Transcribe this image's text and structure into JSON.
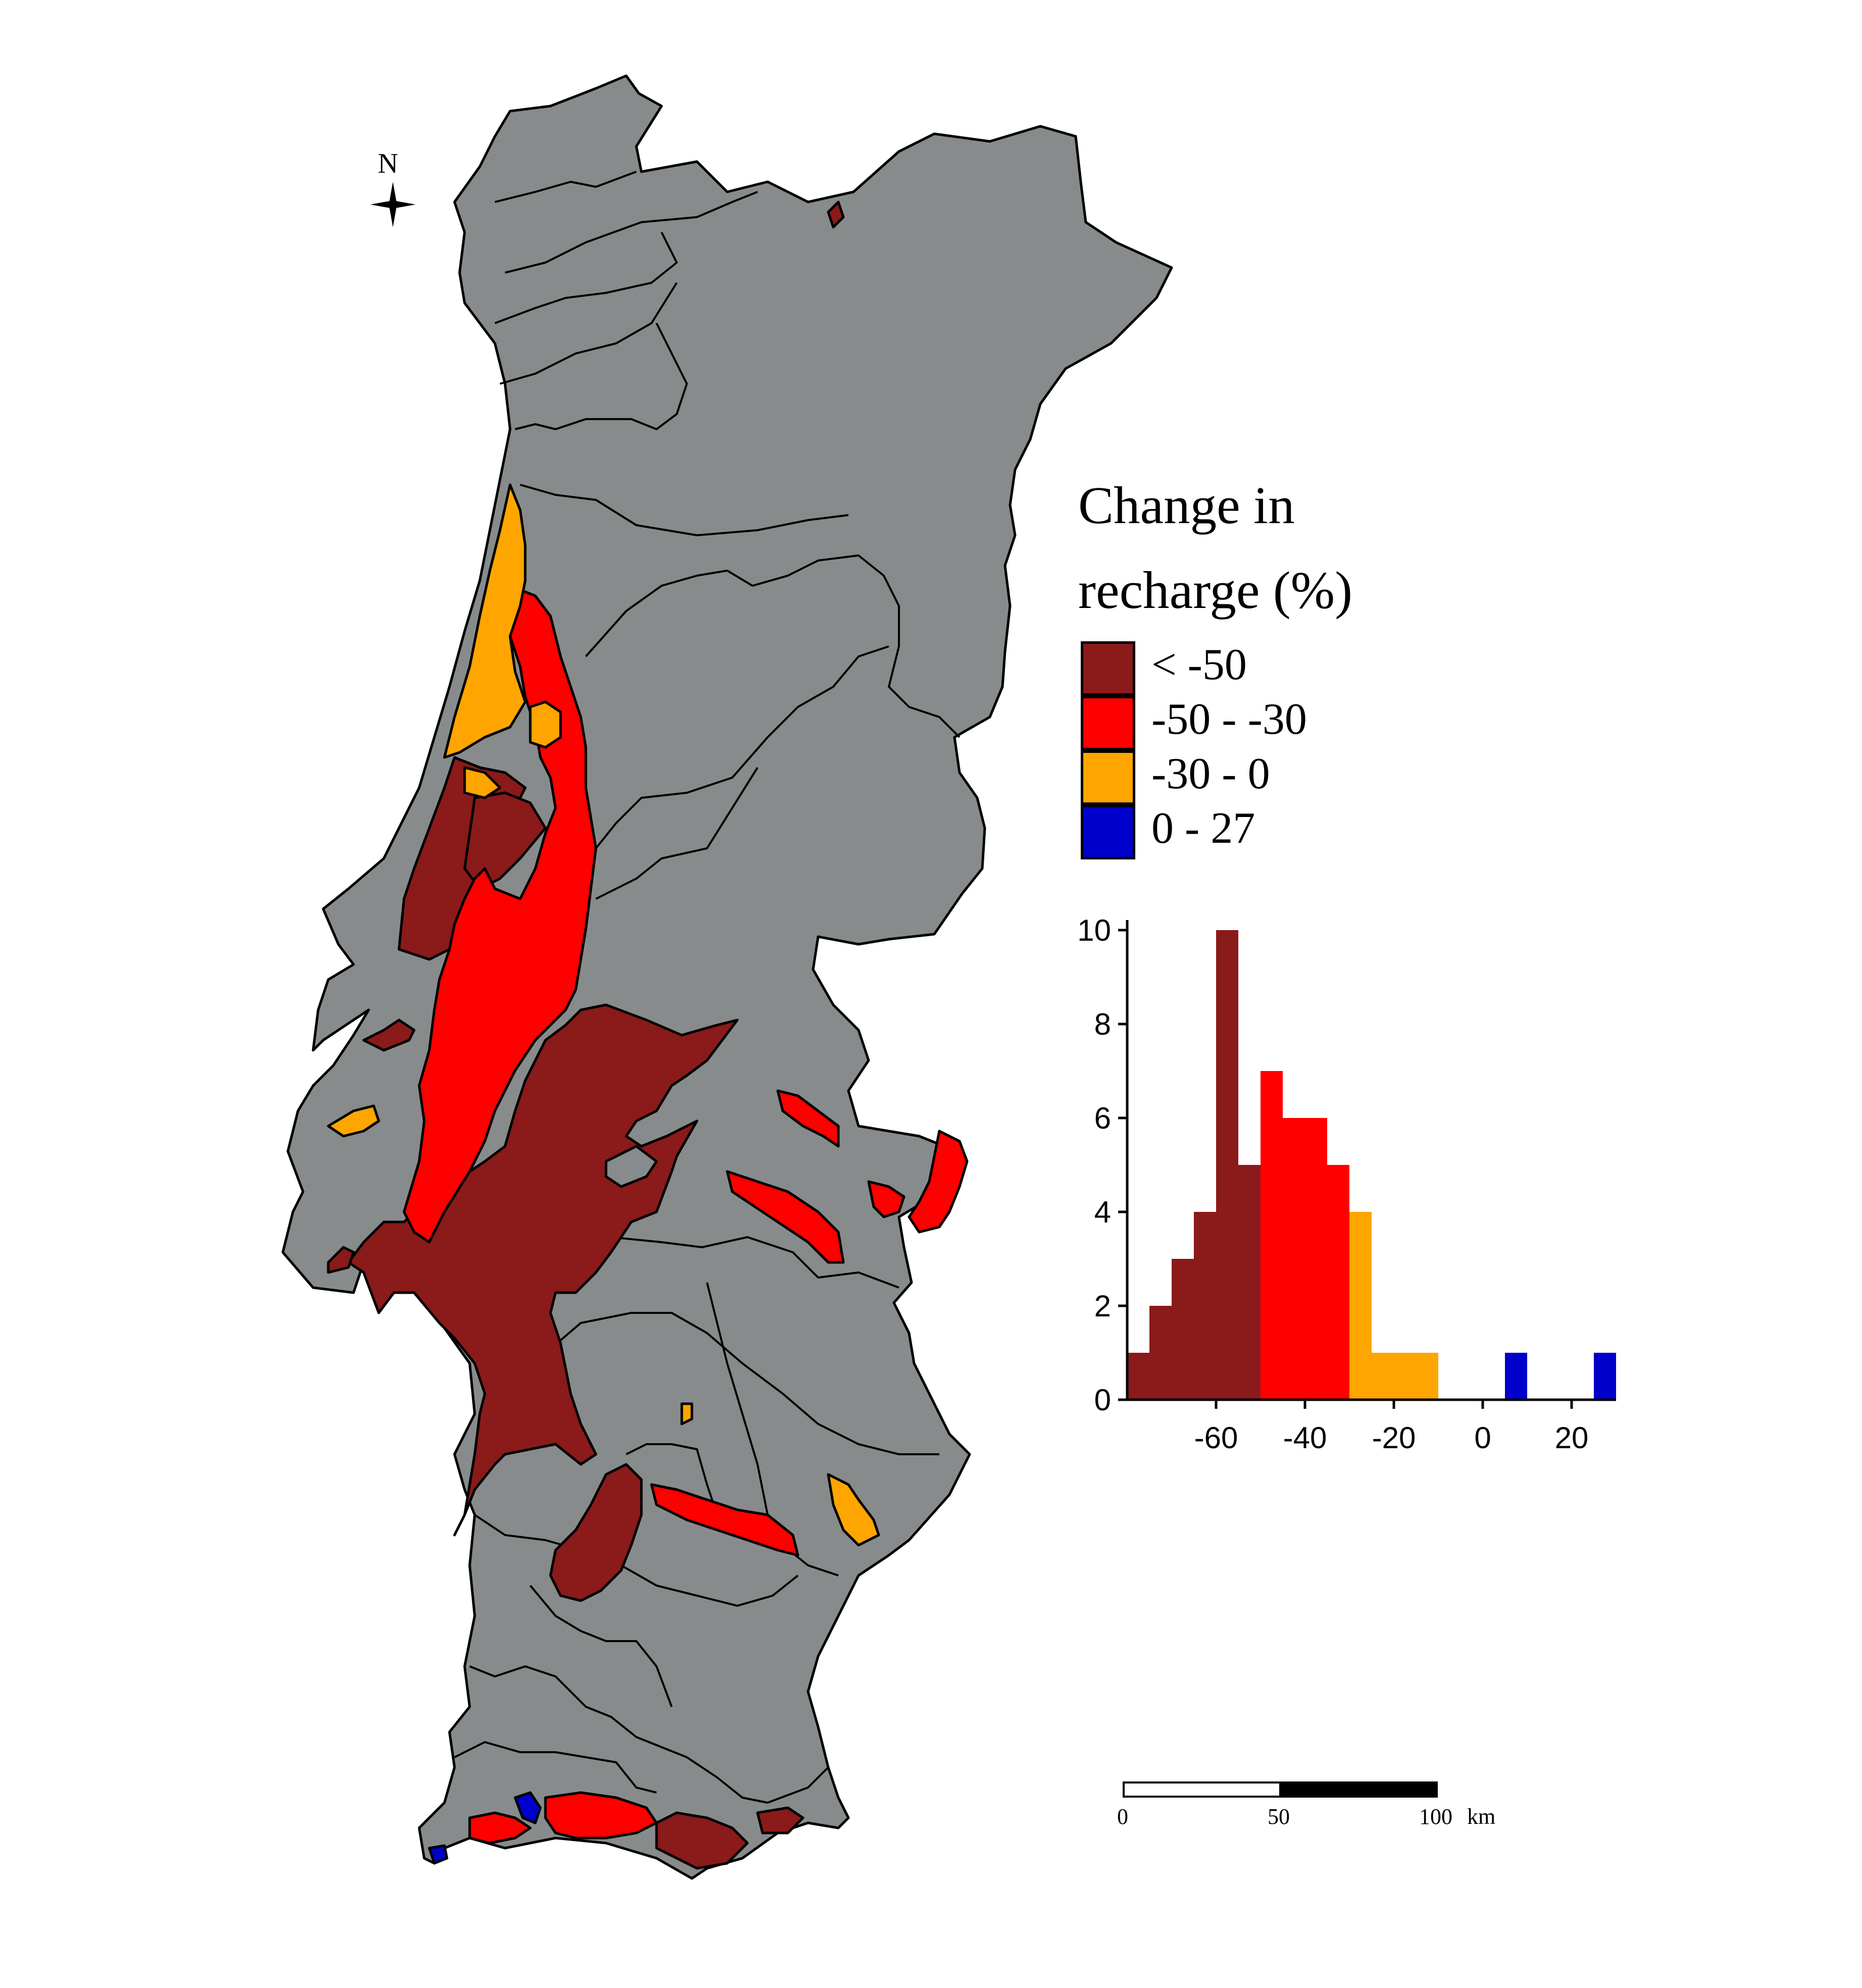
{
  "legend": {
    "title_line1": "Change in",
    "title_line2": "recharge (%)",
    "items": [
      {
        "label": "< -50",
        "color": "#8B1A1A"
      },
      {
        "label": "-50 - -30",
        "color": "#FF0000"
      },
      {
        "label": "-30 - 0",
        "color": "#FFA500"
      },
      {
        "label": "0 - 27",
        "color": "#0000CD"
      }
    ]
  },
  "north_arrow": {
    "label": "N"
  },
  "scale_bar": {
    "ticks": [
      "0",
      "50",
      "100"
    ],
    "unit": "km"
  },
  "map_colors": {
    "land": "#878B8B",
    "severe_decrease": "#8B1A1A",
    "moderate_decrease": "#FF0000",
    "slight_decrease": "#FFA500",
    "increase": "#0000CD"
  },
  "chart_data": {
    "type": "bar",
    "xlim": [
      -80,
      30
    ],
    "ylim": [
      0,
      10
    ],
    "x_ticks": [
      -60,
      -40,
      -20,
      0,
      20
    ],
    "y_ticks": [
      0,
      2,
      4,
      6,
      8,
      10
    ],
    "bin_width": 5,
    "bins": [
      {
        "x0": -80,
        "x1": -75,
        "count": 1,
        "color": "#8B1A1A"
      },
      {
        "x0": -75,
        "x1": -70,
        "count": 2,
        "color": "#8B1A1A"
      },
      {
        "x0": -70,
        "x1": -65,
        "count": 3,
        "color": "#8B1A1A"
      },
      {
        "x0": -65,
        "x1": -60,
        "count": 4,
        "color": "#8B1A1A"
      },
      {
        "x0": -60,
        "x1": -55,
        "count": 10,
        "color": "#8B1A1A"
      },
      {
        "x0": -55,
        "x1": -50,
        "count": 5,
        "color": "#8B1A1A"
      },
      {
        "x0": -50,
        "x1": -45,
        "count": 7,
        "color": "#FF0000"
      },
      {
        "x0": -45,
        "x1": -40,
        "count": 6,
        "color": "#FF0000"
      },
      {
        "x0": -40,
        "x1": -35,
        "count": 6,
        "color": "#FF0000"
      },
      {
        "x0": -35,
        "x1": -30,
        "count": 5,
        "color": "#FF0000"
      },
      {
        "x0": -30,
        "x1": -25,
        "count": 4,
        "color": "#FFA500"
      },
      {
        "x0": -25,
        "x1": -20,
        "count": 1,
        "color": "#FFA500"
      },
      {
        "x0": -20,
        "x1": -15,
        "count": 1,
        "color": "#FFA500"
      },
      {
        "x0": -15,
        "x1": -10,
        "count": 1,
        "color": "#FFA500"
      },
      {
        "x0": 5,
        "x1": 10,
        "count": 1,
        "color": "#0000CD"
      },
      {
        "x0": 25,
        "x1": 30,
        "count": 1,
        "color": "#0000CD"
      }
    ]
  }
}
